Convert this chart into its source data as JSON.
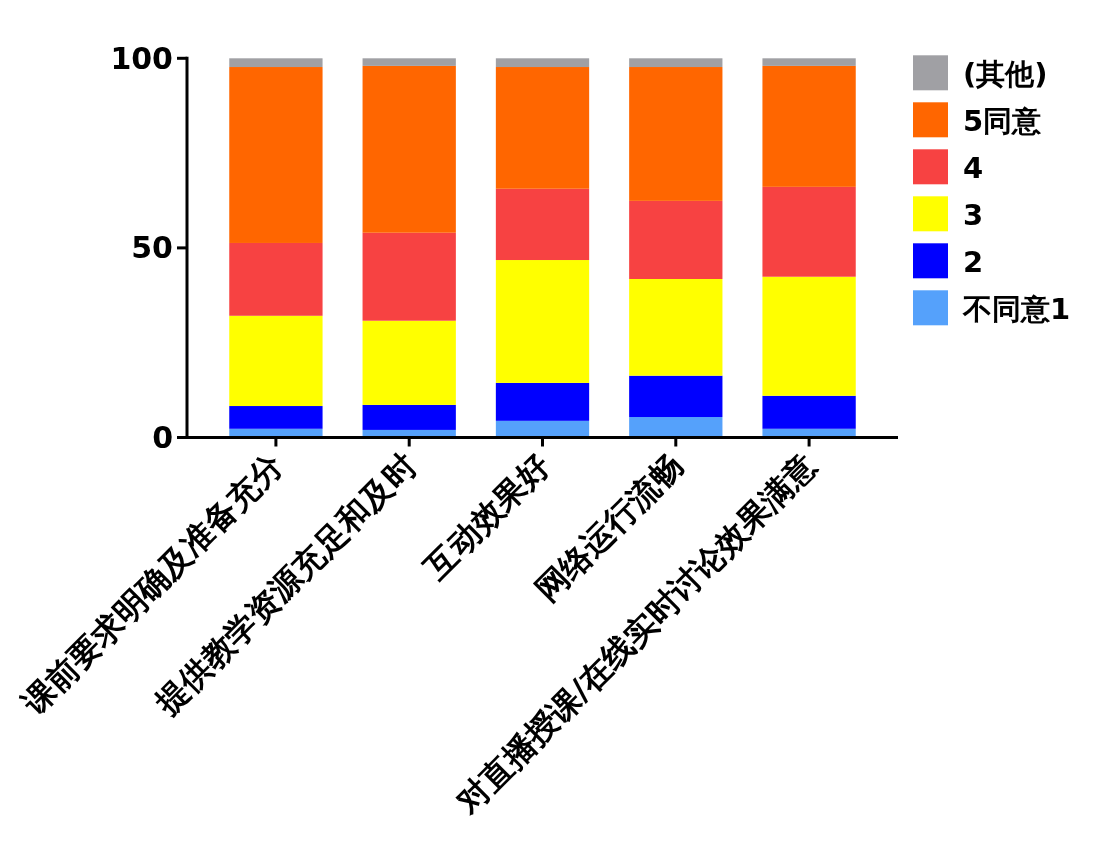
{
  "chart_data": {
    "type": "bar",
    "stacked": true,
    "categories": [
      "课前要求明确及准备充分",
      "提供教学资源充足和及时",
      "互动效果好",
      "网络运行流畅",
      "对直播授课/在线实时讨论效果满意"
    ],
    "series": [
      {
        "name": "不同意1",
        "color": "#55a1fb",
        "values": [
          2.3,
          2.0,
          4.4,
          5.4,
          2.3
        ]
      },
      {
        "name": "2",
        "color": "#0000ff",
        "values": [
          6.0,
          6.6,
          10.0,
          10.9,
          8.7
        ]
      },
      {
        "name": "3",
        "color": "#ffff00",
        "values": [
          23.8,
          22.2,
          32.4,
          25.5,
          31.4
        ]
      },
      {
        "name": "4",
        "color": "#f74242",
        "values": [
          19.2,
          23.2,
          18.8,
          20.6,
          23.7
        ]
      },
      {
        "name": "5同意",
        "color": "#ff6600",
        "values": [
          46.4,
          44.0,
          32.1,
          35.3,
          31.9
        ]
      },
      {
        "name": "(其他)",
        "color": "#a0a0a4",
        "values": [
          2.3,
          2.0,
          2.3,
          2.3,
          2.0
        ]
      }
    ],
    "ylim": [
      0,
      100
    ],
    "yticks": [
      0,
      50,
      100
    ],
    "legend": "right"
  }
}
